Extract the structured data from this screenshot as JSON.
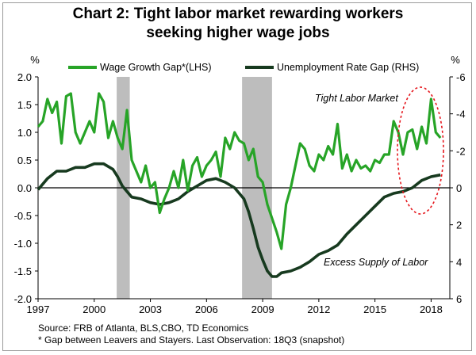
{
  "title_line1": "Chart 2: Tight labor market rewarding workers",
  "title_line2": "seeking higher wage jobs",
  "source_line1": "Source: FRB of Atlanta, BLS,CBO, TD Economics",
  "source_line2": "* Gap between Leavers and Stayers. Last Observation: 18Q3 (snapshot)",
  "chart_data": {
    "type": "line",
    "left_axis": {
      "unit": "%",
      "min": -2.0,
      "max": 2.0,
      "ticks": [
        "2.0",
        "1.5",
        "1.0",
        "0.5",
        "0.0",
        "-0.5",
        "-1.0",
        "-1.5",
        "-2.0"
      ]
    },
    "right_axis": {
      "unit": "%",
      "min": -6,
      "max": 6,
      "inverted": true,
      "ticks": [
        "-6",
        "-4",
        "-2",
        "0",
        "2",
        "4",
        "6"
      ]
    },
    "x_axis": {
      "min": 1997,
      "max": 2019,
      "ticks": [
        "1997",
        "2000",
        "2003",
        "2006",
        "2009",
        "2012",
        "2015",
        "2018"
      ]
    },
    "legend": [
      "Wage Growth Gap*(LHS)",
      "Unemployment Rate Gap (RHS)"
    ],
    "colors": {
      "wage": "#27a427",
      "unemployment": "#173a1f",
      "recession": "#bdbdbd",
      "oval": "#e5171d"
    },
    "recessions": [
      [
        2001.2,
        2001.9
      ],
      [
        2007.9,
        2009.5
      ]
    ],
    "annotations": {
      "tight": "Tight Labor Market",
      "excess": "Excess Supply of Labor"
    },
    "series": [
      {
        "name": "Wage Growth Gap*(LHS)",
        "axis": "left",
        "x": [
          1997.0,
          1997.25,
          1997.5,
          1997.75,
          1998.0,
          1998.25,
          1998.5,
          1998.75,
          1999.0,
          1999.25,
          1999.5,
          1999.75,
          2000.0,
          2000.25,
          2000.5,
          2000.75,
          2001.0,
          2001.25,
          2001.5,
          2001.75,
          2002.0,
          2002.25,
          2002.5,
          2002.75,
          2003.0,
          2003.25,
          2003.5,
          2003.75,
          2004.0,
          2004.25,
          2004.5,
          2004.75,
          2005.0,
          2005.25,
          2005.5,
          2005.75,
          2006.0,
          2006.25,
          2006.5,
          2006.75,
          2007.0,
          2007.25,
          2007.5,
          2007.75,
          2008.0,
          2008.25,
          2008.5,
          2008.75,
          2009.0,
          2009.25,
          2009.5,
          2009.75,
          2010.0,
          2010.25,
          2010.5,
          2010.75,
          2011.0,
          2011.25,
          2011.5,
          2011.75,
          2012.0,
          2012.25,
          2012.5,
          2012.75,
          2013.0,
          2013.25,
          2013.5,
          2013.75,
          2014.0,
          2014.25,
          2014.5,
          2014.75,
          2015.0,
          2015.25,
          2015.5,
          2015.75,
          2016.0,
          2016.25,
          2016.5,
          2016.75,
          2017.0,
          2017.25,
          2017.5,
          2017.75,
          2018.0,
          2018.25,
          2018.5
        ],
        "values": [
          1.1,
          1.2,
          1.6,
          1.35,
          1.55,
          0.8,
          1.65,
          1.7,
          1.0,
          0.8,
          1.0,
          1.2,
          1.0,
          1.7,
          1.55,
          0.9,
          1.2,
          0.9,
          0.7,
          1.4,
          0.5,
          0.3,
          0.1,
          0.4,
          0.0,
          0.1,
          -0.45,
          -0.2,
          0.0,
          0.3,
          0.0,
          0.5,
          -0.05,
          0.4,
          0.55,
          0.2,
          0.4,
          0.5,
          0.65,
          0.2,
          0.9,
          0.7,
          1.0,
          0.85,
          0.8,
          0.5,
          0.7,
          0.2,
          0.1,
          -0.3,
          -0.55,
          -0.8,
          -1.1,
          -0.3,
          0.0,
          0.4,
          0.8,
          0.7,
          0.4,
          0.3,
          0.6,
          0.5,
          0.75,
          0.6,
          1.15,
          0.35,
          0.6,
          0.3,
          0.5,
          0.35,
          0.4,
          0.3,
          0.5,
          0.45,
          0.6,
          0.6,
          1.2,
          1.0,
          0.6,
          1.0,
          1.05,
          0.7,
          1.1,
          0.8,
          1.6,
          1.0,
          0.9
        ]
      },
      {
        "name": "Unemployment Rate Gap (RHS)",
        "axis": "right",
        "x": [
          1997.0,
          1997.5,
          1998.0,
          1998.5,
          1999.0,
          1999.5,
          2000.0,
          2000.5,
          2001.0,
          2001.25,
          2001.5,
          2001.75,
          2002.0,
          2002.5,
          2003.0,
          2003.5,
          2004.0,
          2004.5,
          2005.0,
          2005.5,
          2006.0,
          2006.5,
          2007.0,
          2007.5,
          2008.0,
          2008.25,
          2008.5,
          2008.75,
          2009.0,
          2009.25,
          2009.5,
          2009.75,
          2010.0,
          2010.5,
          2011.0,
          2011.5,
          2012.0,
          2012.5,
          2013.0,
          2013.5,
          2014.0,
          2014.5,
          2015.0,
          2015.5,
          2016.0,
          2016.5,
          2017.0,
          2017.5,
          2018.0,
          2018.5
        ],
        "values": [
          0.1,
          -0.5,
          -0.9,
          -0.9,
          -1.1,
          -1.1,
          -1.3,
          -1.3,
          -1.0,
          -0.6,
          -0.1,
          0.2,
          0.5,
          0.6,
          0.8,
          0.9,
          0.8,
          0.6,
          0.2,
          -0.1,
          -0.4,
          -0.5,
          -0.3,
          0.0,
          0.6,
          1.3,
          2.2,
          3.2,
          3.9,
          4.5,
          4.8,
          4.8,
          4.6,
          4.5,
          4.3,
          4.0,
          3.6,
          3.4,
          3.1,
          2.5,
          2.0,
          1.5,
          1.0,
          0.5,
          0.3,
          0.2,
          0.0,
          -0.4,
          -0.6,
          -0.7
        ]
      }
    ]
  }
}
